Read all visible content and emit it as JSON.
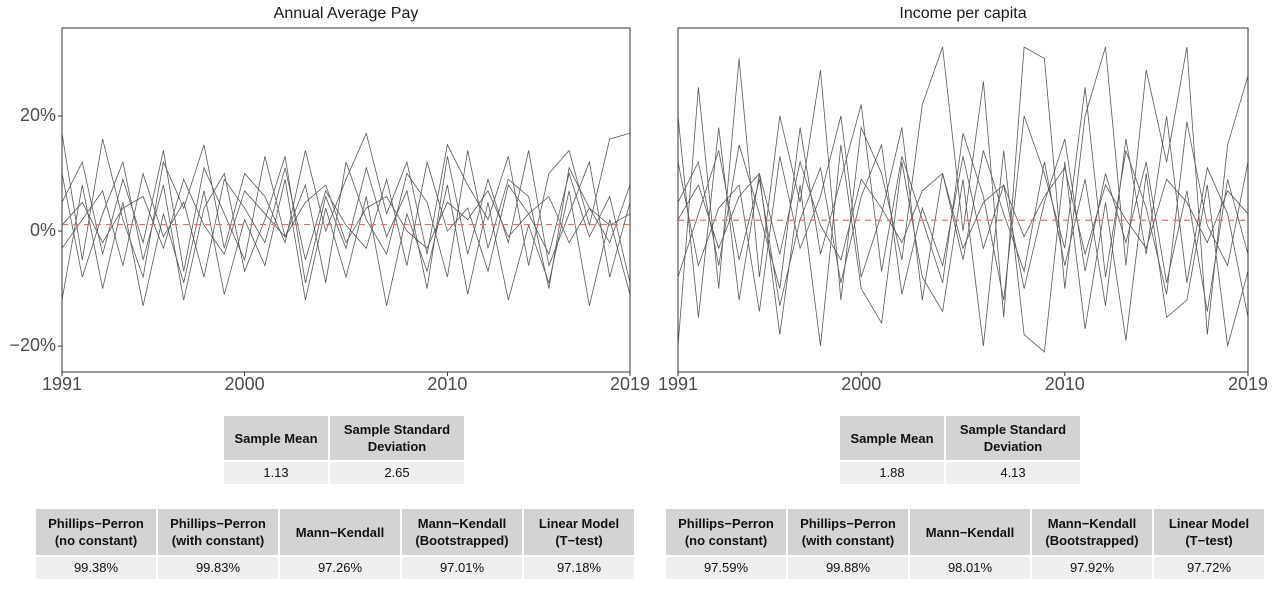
{
  "chart_data": [
    {
      "type": "line",
      "title": "Annual Average Pay",
      "x": [
        1991,
        1992,
        1993,
        1994,
        1995,
        1996,
        1997,
        1998,
        1999,
        2000,
        2001,
        2002,
        2003,
        2004,
        2005,
        2006,
        2007,
        2008,
        2009,
        2010,
        2011,
        2012,
        2013,
        2014,
        2015,
        2016,
        2017,
        2018,
        2019
      ],
      "xlim": [
        1991,
        2019
      ],
      "xticks": [
        1991,
        2000,
        2010,
        2019
      ],
      "ylim": [
        -24.5,
        35.3
      ],
      "yticks": [
        {
          "value": 20,
          "label": "20%"
        },
        {
          "value": 0,
          "label": "0%"
        },
        {
          "value": -20,
          "label": "−20%"
        }
      ],
      "series": [
        {
          "color": "#595959",
          "values": [
            17,
            -5,
            16,
            2,
            -8,
            12,
            4,
            15,
            -3,
            10,
            6,
            -2,
            14,
            0,
            9,
            17,
            3,
            12,
            -4,
            15,
            8,
            2,
            13,
            -6,
            10,
            14,
            1,
            16,
            17
          ]
        },
        {
          "color": "#595959",
          "values": [
            -12,
            8,
            -10,
            5,
            -13,
            3,
            -9,
            7,
            -11,
            2,
            -6,
            9,
            -12,
            4,
            -8,
            6,
            -13,
            3,
            -7,
            8,
            -11,
            5,
            -12,
            1,
            -9,
            7,
            -13,
            2,
            -11
          ]
        },
        {
          "color": "#595959",
          "values": [
            5,
            12,
            -4,
            9,
            -2,
            14,
            -7,
            11,
            3,
            -5,
            13,
            -1,
            8,
            -9,
            12,
            2,
            -4,
            10,
            5,
            -8,
            14,
            -3,
            9,
            6,
            -10,
            11,
            4,
            -2,
            8
          ]
        },
        {
          "color": "#595959",
          "values": [
            -3,
            2,
            7,
            -6,
            10,
            -1,
            5,
            -8,
            9,
            4,
            -2,
            11,
            -5,
            7,
            1,
            -3,
            9,
            -6,
            12,
            0,
            4,
            -7,
            8,
            3,
            -4,
            10,
            -1,
            6,
            -9
          ]
        },
        {
          "color": "#595959",
          "values": [
            10,
            -8,
            3,
            12,
            -5,
            8,
            -12,
            4,
            10,
            -7,
            2,
            13,
            -9,
            6,
            -3,
            11,
            -1,
            7,
            -10,
            13,
            -4,
            9,
            -2,
            14,
            -6,
            3,
            12,
            -8,
            5
          ]
        },
        {
          "color": "#595959",
          "values": [
            1,
            5,
            -2,
            4,
            6,
            -3,
            9,
            1,
            -4,
            7,
            3,
            -1,
            5,
            8,
            -2,
            4,
            6,
            0,
            -3,
            5,
            2,
            7,
            -1,
            3,
            6,
            -2,
            4,
            1,
            3
          ]
        }
      ],
      "mean_line": {
        "value": 1.13,
        "color": "#e8706b",
        "dashed": true
      }
    },
    {
      "type": "line",
      "title": "Income per capita",
      "x": [
        1991,
        1992,
        1993,
        1994,
        1995,
        1996,
        1997,
        1998,
        1999,
        2000,
        2001,
        2002,
        2003,
        2004,
        2005,
        2006,
        2007,
        2008,
        2009,
        2010,
        2011,
        2012,
        2013,
        2014,
        2015,
        2016,
        2017,
        2018,
        2019
      ],
      "xlim": [
        1991,
        2019
      ],
      "xticks": [
        1991,
        2000,
        2010,
        2019
      ],
      "ylim": [
        -24.5,
        35.3
      ],
      "series": [
        {
          "color": "#595959",
          "values": [
            -20,
            25,
            -10,
            30,
            -8,
            20,
            5,
            28,
            -12,
            18,
            10,
            -5,
            22,
            32,
            0,
            26,
            -15,
            32,
            30,
            -10,
            20,
            32,
            -6,
            28,
            12,
            32,
            -18,
            15,
            27
          ]
        },
        {
          "color": "#595959",
          "values": [
            20,
            -15,
            18,
            -12,
            10,
            -18,
            8,
            -20,
            15,
            -10,
            -16,
            12,
            -8,
            -14,
            9,
            -20,
            14,
            -18,
            -21,
            12,
            -17,
            5,
            -19,
            10,
            -15,
            -12,
            8,
            -20,
            -7
          ]
        },
        {
          "color": "#595959",
          "values": [
            5,
            12,
            -6,
            15,
            3,
            -10,
            18,
            -4,
            9,
            22,
            -7,
            13,
            2,
            -9,
            17,
            6,
            -12,
            20,
            10,
            -3,
            25,
            -8,
            14,
            4,
            -11,
            19,
            1,
            -6,
            12
          ]
        },
        {
          "color": "#595959",
          "values": [
            -8,
            3,
            14,
            -5,
            9,
            -13,
            2,
            11,
            -9,
            6,
            15,
            -11,
            4,
            -6,
            13,
            -3,
            8,
            -10,
            5,
            16,
            -7,
            10,
            -2,
            12,
            -9,
            7,
            -14,
            9,
            -4
          ]
        },
        {
          "color": "#595959",
          "values": [
            12,
            -6,
            4,
            8,
            -14,
            13,
            -3,
            6,
            20,
            -8,
            3,
            18,
            -12,
            10,
            -5,
            14,
            3,
            -7,
            12,
            -6,
            9,
            -13,
            16,
            -4,
            20,
            -9,
            11,
            3,
            -15
          ]
        },
        {
          "color": "#595959",
          "values": [
            2,
            8,
            -3,
            6,
            10,
            -4,
            12,
            1,
            -5,
            9,
            4,
            -2,
            7,
            10,
            -3,
            5,
            8,
            -1,
            6,
            11,
            -4,
            8,
            2,
            -3,
            9,
            5,
            -2,
            7,
            3
          ]
        }
      ],
      "mean_line": {
        "value": 1.88,
        "color": "#e8706b",
        "dashed": true
      }
    }
  ],
  "tables": [
    {
      "summary": {
        "header": [
          "Sample Mean",
          "Sample Standard\nDeviation"
        ],
        "rows": [
          [
            "1.13",
            "2.65"
          ]
        ]
      },
      "tests": {
        "header": [
          "Phillips−Perron\n(no constant)",
          "Phillips−Perron\n(with constant)",
          "Mann−Kendall",
          "Mann−Kendall\n(Bootstrapped)",
          "Linear Model\n(T−test)"
        ],
        "rows": [
          [
            "99.38%",
            "99.83%",
            "97.26%",
            "97.01%",
            "97.18%"
          ]
        ]
      }
    },
    {
      "summary": {
        "header": [
          "Sample Mean",
          "Sample Standard\nDeviation"
        ],
        "rows": [
          [
            "1.88",
            "4.13"
          ]
        ]
      },
      "tests": {
        "header": [
          "Phillips−Perron\n(no constant)",
          "Phillips−Perron\n(with constant)",
          "Mann−Kendall",
          "Mann−Kendall\n(Bootstrapped)",
          "Linear Model\n(T−test)"
        ],
        "rows": [
          [
            "97.59%",
            "99.88%",
            "98.01%",
            "97.92%",
            "97.72%"
          ]
        ]
      }
    }
  ]
}
